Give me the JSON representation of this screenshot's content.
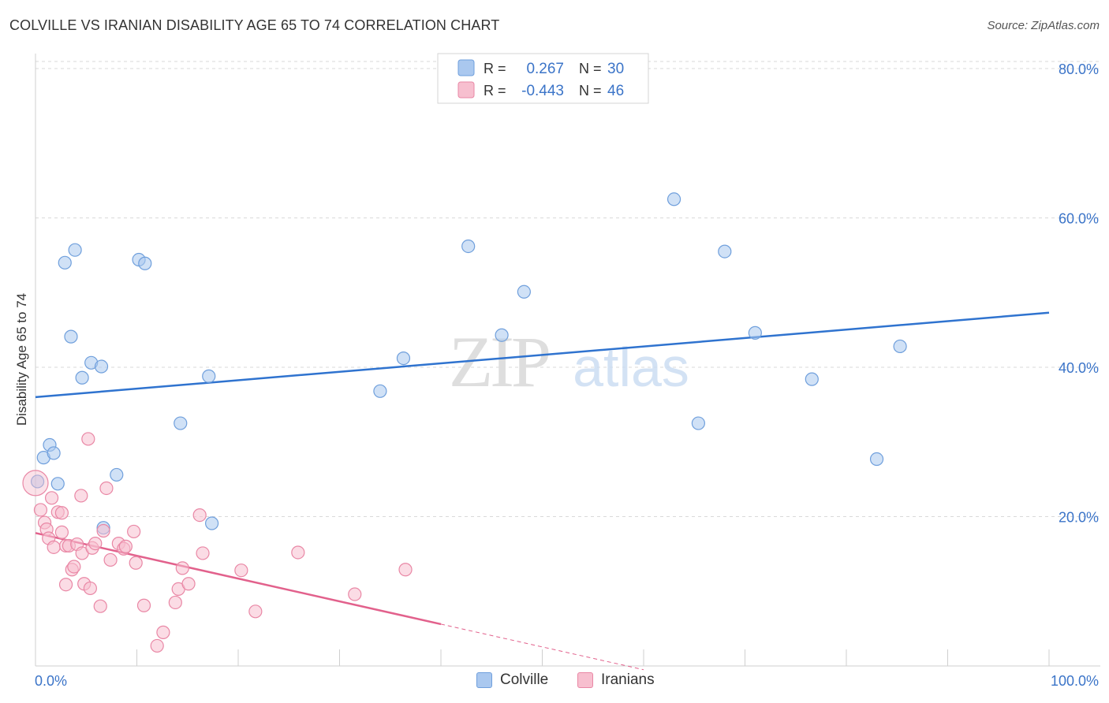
{
  "title": "COLVILLE VS IRANIAN DISABILITY AGE 65 TO 74 CORRELATION CHART",
  "source": "Source: ZipAtlas.com",
  "watermark": {
    "zip": "ZIP",
    "atlas": "atlas"
  },
  "colors": {
    "colville_fill": "#aac8ef",
    "colville_stroke": "#6f9fdc",
    "colville_line": "#2f73cf",
    "iranians_fill": "#f7bfcf",
    "iranians_stroke": "#e987a5",
    "iranians_line": "#e2618c",
    "value_text": "#3b74c8",
    "grid": "#d9d9d9"
  },
  "legend_top": {
    "rows": [
      {
        "r_label": "R =",
        "r_value": "0.267",
        "n_label": "N =",
        "n_value": "30"
      },
      {
        "r_label": "R =",
        "r_value": "-0.443",
        "n_label": "N =",
        "n_value": "46"
      }
    ]
  },
  "legend_bottom": {
    "colville": "Colville",
    "iranians": "Iranians"
  },
  "chart_data": {
    "type": "scatter",
    "title": "COLVILLE VS IRANIAN DISABILITY AGE 65 TO 74 CORRELATION CHART",
    "xlabel": "",
    "ylabel": "Disability Age 65 to 74",
    "xlim": [
      0,
      100
    ],
    "ylim": [
      0,
      82
    ],
    "x_tick_labels": [
      "0.0%",
      "100.0%"
    ],
    "y_ticks": [
      20,
      40,
      60,
      80
    ],
    "y_tick_labels": [
      "20.0%",
      "40.0%",
      "60.0%",
      "80.0%"
    ],
    "grid": true,
    "legend_position": "top-center",
    "series": [
      {
        "name": "Colville",
        "r": 0.267,
        "n": 30,
        "trend": {
          "x": [
            0,
            100
          ],
          "y": [
            36.0,
            47.3
          ]
        },
        "points": [
          [
            0.2,
            24.7
          ],
          [
            0.8,
            27.9
          ],
          [
            1.4,
            29.6
          ],
          [
            1.8,
            28.5
          ],
          [
            2.2,
            24.4
          ],
          [
            2.9,
            54.0
          ],
          [
            3.5,
            44.1
          ],
          [
            3.9,
            55.7
          ],
          [
            4.6,
            38.6
          ],
          [
            5.5,
            40.6
          ],
          [
            6.5,
            40.1
          ],
          [
            6.7,
            18.5
          ],
          [
            8.0,
            25.6
          ],
          [
            10.2,
            54.4
          ],
          [
            10.8,
            53.9
          ],
          [
            14.3,
            32.5
          ],
          [
            17.1,
            38.8
          ],
          [
            17.4,
            19.1
          ],
          [
            34.0,
            36.8
          ],
          [
            36.3,
            41.2
          ],
          [
            42.7,
            56.2
          ],
          [
            46.0,
            44.3
          ],
          [
            48.2,
            50.1
          ],
          [
            63.0,
            62.5
          ],
          [
            65.4,
            32.5
          ],
          [
            68.0,
            55.5
          ],
          [
            71.0,
            44.6
          ],
          [
            76.6,
            38.4
          ],
          [
            83.0,
            27.7
          ],
          [
            85.3,
            42.8
          ]
        ]
      },
      {
        "name": "Iranians",
        "r": -0.443,
        "n": 46,
        "trend": {
          "x": [
            0,
            40
          ],
          "y": [
            17.8,
            5.6
          ]
        },
        "trend_extension": {
          "x": [
            40,
            60
          ],
          "y": [
            5.6,
            -0.5
          ]
        },
        "points": [
          [
            0.0,
            24.5
          ],
          [
            0.5,
            20.9
          ],
          [
            0.9,
            19.2
          ],
          [
            1.1,
            18.3
          ],
          [
            1.3,
            17.1
          ],
          [
            1.6,
            22.5
          ],
          [
            1.8,
            15.9
          ],
          [
            2.2,
            20.6
          ],
          [
            2.6,
            20.5
          ],
          [
            2.6,
            17.9
          ],
          [
            3.0,
            10.9
          ],
          [
            3.0,
            16.1
          ],
          [
            3.3,
            16.1
          ],
          [
            3.6,
            12.9
          ],
          [
            3.8,
            13.3
          ],
          [
            4.1,
            16.3
          ],
          [
            4.5,
            22.8
          ],
          [
            4.6,
            15.1
          ],
          [
            4.8,
            11.0
          ],
          [
            5.2,
            30.4
          ],
          [
            5.4,
            10.4
          ],
          [
            5.6,
            15.8
          ],
          [
            5.9,
            16.4
          ],
          [
            6.4,
            8.0
          ],
          [
            6.7,
            18.1
          ],
          [
            7.0,
            23.8
          ],
          [
            7.4,
            14.2
          ],
          [
            8.2,
            16.4
          ],
          [
            8.7,
            15.7
          ],
          [
            8.9,
            16.0
          ],
          [
            9.7,
            18.0
          ],
          [
            9.9,
            13.8
          ],
          [
            10.7,
            8.1
          ],
          [
            12.0,
            2.7
          ],
          [
            12.6,
            4.5
          ],
          [
            13.8,
            8.5
          ],
          [
            14.1,
            10.3
          ],
          [
            14.5,
            13.1
          ],
          [
            15.1,
            11.0
          ],
          [
            16.2,
            20.2
          ],
          [
            16.5,
            15.1
          ],
          [
            20.3,
            12.8
          ],
          [
            21.7,
            7.3
          ],
          [
            25.9,
            15.2
          ],
          [
            31.5,
            9.6
          ],
          [
            36.5,
            12.9
          ]
        ]
      }
    ]
  }
}
